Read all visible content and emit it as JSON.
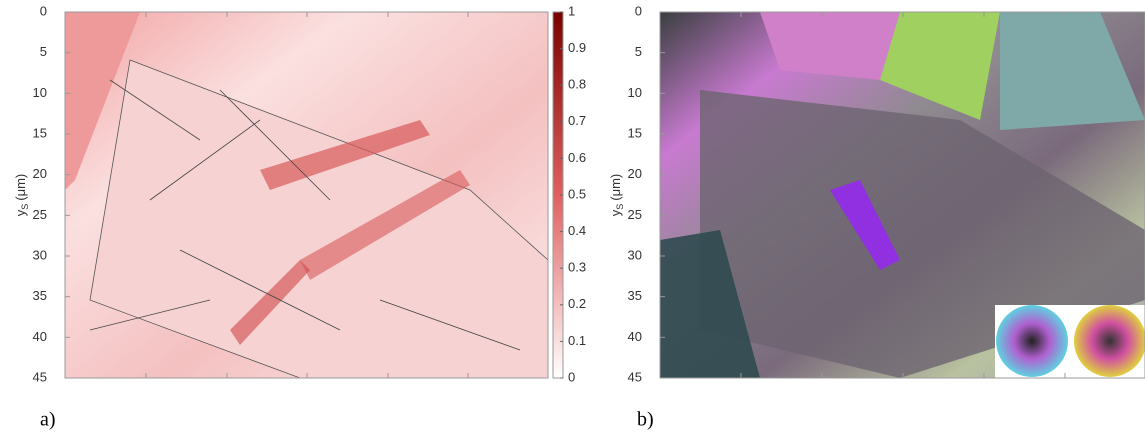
{
  "chart_data": [
    {
      "type": "image",
      "panel_label": "a)",
      "ylabel": {
        "main": "y",
        "sub": "S",
        "unit": "(μm)"
      },
      "ylim": [
        0,
        45
      ],
      "yticks": [
        0,
        5,
        10,
        15,
        20,
        25,
        30,
        35,
        40,
        45
      ],
      "colorbar": {
        "lim": [
          0,
          1
        ],
        "ticks": [
          0,
          0.1,
          0.2,
          0.3,
          0.4,
          0.5,
          0.6,
          0.7,
          0.8,
          0.9,
          1
        ],
        "colors": [
          "#ffffff",
          "#e06060",
          "#7a0000"
        ]
      }
    },
    {
      "type": "image",
      "panel_label": "b)",
      "ylabel": {
        "main": "y",
        "sub": "S",
        "unit": "(μm)"
      },
      "ylim": [
        0,
        45
      ],
      "yticks": [
        0,
        5,
        10,
        15,
        20,
        25,
        30,
        35,
        40,
        45
      ]
    }
  ]
}
